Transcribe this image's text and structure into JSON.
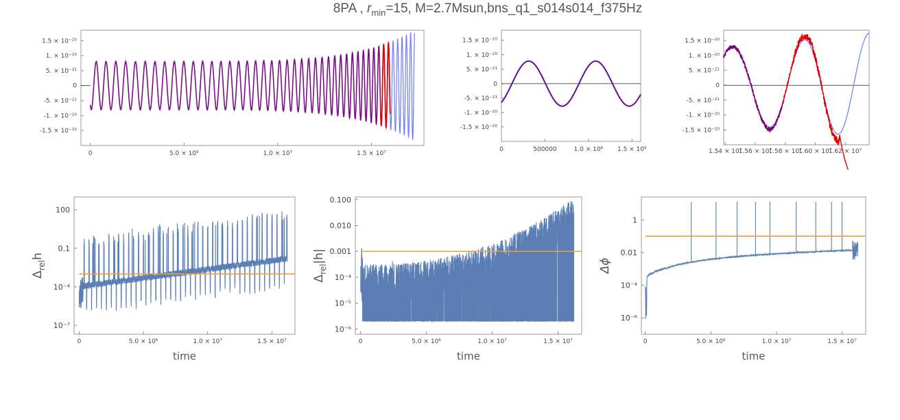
{
  "title": {
    "prefix": "8PA , ",
    "r_symbol": "r",
    "r_sub": "min",
    "rest": "=15, M=2.7Msun,bns_q1_s014s014_f375Hz"
  },
  "colors": {
    "numerical": "#6b7bff",
    "analytic": "#e00000",
    "overlap": "#7a007a",
    "error_line": "#5b7fb5",
    "threshold": "#f0a030",
    "axis": "#888888",
    "frame": "#999999"
  },
  "chart_data": [
    {
      "id": "strain_full",
      "type": "line",
      "xlim": [
        -500000,
        17800000
      ],
      "ylim": [
        -2e-20,
        1.85e-20
      ],
      "x_ticks": [
        0,
        5000000,
        10000000,
        15000000
      ],
      "x_tick_labels": [
        "0",
        "5.0 × 10⁶",
        "1.0 × 10⁷",
        "1.5 × 10⁷"
      ],
      "y_ticks": [
        1.5e-20,
        1e-20,
        5e-21,
        0,
        -5e-21,
        -1e-20,
        -1.5e-20
      ],
      "y_tick_labels": [
        "1.5 × 10⁻²⁰",
        "1. × 10⁻²⁰",
        "5. × 10⁻²¹",
        "0",
        "-5. × 10⁻²¹",
        "-1. × 10⁻²⁰",
        "-1.5 × 10⁻²⁰"
      ],
      "series": [
        {
          "role": "numerical",
          "description": "oscillating strain, amplitude ~8e-21 growing to ~1.7e-20, ending near 1.75e7"
        },
        {
          "role": "analytic",
          "description": "overlapping strain ending near 1.6e7"
        }
      ],
      "x_end_numerical": 17300000,
      "x_end_analytic": 16000000,
      "cycles": 33
    },
    {
      "id": "strain_early",
      "type": "line",
      "xlim": [
        0,
        1600000
      ],
      "ylim": [
        -2e-20,
        1.85e-20
      ],
      "x_ticks": [
        0,
        500000,
        1000000,
        1500000
      ],
      "x_tick_labels": [
        "0",
        "500000",
        "1.0 × 10⁶",
        "1.5 × 10⁶"
      ],
      "y_ticks": [
        1.5e-20,
        1e-20,
        5e-21,
        0,
        -5e-21,
        -1e-20,
        -1.5e-20
      ],
      "y_tick_labels": [
        "1.5 × 10⁻²⁰",
        "1. × 10⁻²⁰",
        "5. × 10⁻²¹",
        "0",
        "-5. × 10⁻²¹",
        "-1. × 10⁻²⁰",
        "-1.5 × 10⁻²⁰"
      ],
      "amplitude": 7.8e-21,
      "period": 770000,
      "phase_start": -6.5e-21
    },
    {
      "id": "strain_late",
      "type": "line",
      "xlim": [
        15390000,
        16360000
      ],
      "ylim": [
        -2e-20,
        1.85e-20
      ],
      "x_ticks": [
        15400000,
        15600000,
        15800000,
        16000000,
        16200000
      ],
      "x_tick_labels": [
        "1.54 × 10⁷",
        "1.56 × 10⁷",
        "1.58 × 10⁷",
        "1.60 × 10⁷",
        "1.62 × 10⁷"
      ],
      "y_ticks": [
        1.5e-20,
        1e-20,
        5e-21,
        0,
        -5e-21,
        -1e-20,
        -1.5e-20
      ],
      "y_tick_labels": [
        "1.5 × 10⁻²⁰",
        "1. × 10⁻²⁰",
        "5. × 10⁻²¹",
        "0",
        "-5. × 10⁻²¹",
        "-1. × 10⁻²⁰",
        "-1.5 × 10⁻²⁰"
      ]
    },
    {
      "id": "rel_h",
      "type": "line",
      "yscale": "log",
      "xlim": [
        -400000,
        16800000
      ],
      "ylog_range": [
        -7.7,
        3
      ],
      "x_ticks": [
        0,
        5000000,
        10000000,
        15000000
      ],
      "x_tick_labels": [
        "0",
        "5.0 × 10⁶",
        "1.0 × 10⁷",
        "1.5 × 10⁷"
      ],
      "y_ticks_log": [
        2,
        -1,
        -4,
        -7
      ],
      "y_tick_labels": [
        "100",
        "0.1",
        "10⁻⁴",
        "10⁻⁷"
      ],
      "xlabel": "time",
      "ylabel_main": "Δ",
      "ylabel_sub": "rel",
      "ylabel_tail": "h",
      "threshold_log": -3,
      "spike_period": 385000
    },
    {
      "id": "rel_abs_h",
      "type": "line",
      "yscale": "log",
      "xlim": [
        -400000,
        16800000
      ],
      "ylog_range": [
        -6.2,
        -0.9
      ],
      "x_ticks": [
        0,
        5000000,
        10000000,
        15000000
      ],
      "x_tick_labels": [
        "0",
        "5.0 × 10⁶",
        "1.0 × 10⁷",
        "1.5 × 10⁷"
      ],
      "y_ticks_log": [
        -1,
        -2,
        -3,
        -4,
        -5,
        -6
      ],
      "y_tick_labels": [
        "0.100",
        "0.010",
        "0.001",
        "10⁻⁴",
        "10⁻⁵",
        "10⁻⁶"
      ],
      "xlabel": "time",
      "ylabel_main": "Δ",
      "ylabel_sub": "rel",
      "ylabel_tail": "|h|",
      "threshold_log": -3
    },
    {
      "id": "phase_err",
      "type": "line",
      "yscale": "log",
      "xlim": [
        -300000,
        16800000
      ],
      "ylog_range": [
        -7,
        1.4
      ],
      "x_ticks": [
        0,
        5000000,
        10000000,
        15000000
      ],
      "x_tick_labels": [
        "0",
        "5.0 × 10⁶",
        "1.0 × 10⁷",
        "1.5 × 10⁷"
      ],
      "y_ticks_log": [
        0,
        -2,
        -4,
        -6
      ],
      "y_tick_labels": [
        "1",
        "0.01",
        "10⁻⁴",
        "10⁻⁶"
      ],
      "xlabel": "time",
      "ylabel": "Δϕ",
      "threshold_log": -1,
      "spike_x": [
        3500000,
        5400000,
        7000000,
        8400000,
        9500000,
        11500000,
        13000000,
        14200000,
        15000000
      ]
    }
  ]
}
